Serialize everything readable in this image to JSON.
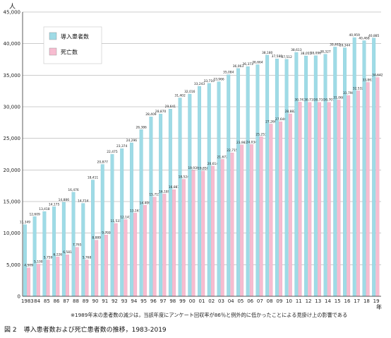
{
  "chart_data": {
    "type": "bar",
    "y_unit_label": "人",
    "x_unit_label": "年",
    "ylim": [
      0,
      45000
    ],
    "y_ticks": [
      "0",
      "5,000",
      "10,000",
      "15,000",
      "20,000",
      "25,000",
      "30,000",
      "35,000",
      "40,000",
      "45,000"
    ],
    "grid": true,
    "legend_position": "top-left",
    "categories": [
      "1983",
      "84",
      "85",
      "86",
      "87",
      "88",
      "89",
      "90",
      "91",
      "92",
      "93",
      "94",
      "95",
      "96",
      "97",
      "98",
      "99",
      "00",
      "01",
      "02",
      "03",
      "04",
      "05",
      "06",
      "07",
      "08",
      "09",
      "10",
      "11",
      "12",
      "13",
      "14",
      "15",
      "16",
      "17",
      "18",
      "19"
    ],
    "series": [
      {
        "name": "導入患者数",
        "color": "#9fdbe6",
        "values": [
          11349,
          12609,
          13418,
          14175,
          14886,
          16476,
          14714,
          18411,
          20877,
          22475,
          23374,
          24296,
          26386,
          28409,
          28870,
          29641,
          31402,
          32016,
          33243,
          33710,
          33966,
          35084,
          36063,
          36373,
          36664,
          38180,
          37588,
          37512,
          38613,
          38055,
          38096,
          38327,
          39462,
          39344,
          40959,
          40468,
          40885
        ],
        "labels": [
          "11,349",
          "12,609",
          "13,418",
          "14,175",
          "14,886",
          "16,476",
          "14,714",
          "18,411",
          "20,877",
          "22,475",
          "23,374",
          "24,296",
          "26,386",
          "28,409",
          "28,870",
          "29,641",
          "31,402",
          "32,016",
          "33,243",
          "33,710",
          "33,966",
          "35,084",
          "36,063",
          "36,373",
          "36,664",
          "38,180",
          "37,588",
          "37,512",
          "38,613",
          "38,055",
          "38,096",
          "38,327",
          "39,462",
          "39,344",
          "40,959",
          "40,468",
          "40,885"
        ]
      },
      {
        "name": "死亡数",
        "color": "#f7bcd0",
        "values": [
          4509,
          5100,
          5759,
          6226,
          6581,
          7765,
          5768,
          8889,
          9703,
          11531,
          12143,
          13167,
          14406,
          15715,
          16189,
          16887,
          18524,
          19930,
          19850,
          20614,
          21672,
          22715,
          23983,
          24034,
          25253,
          27266,
          27646,
          28882,
          30743,
          30710,
          30710,
          30707,
          31068,
          31790,
          32532,
          33863,
          34642
        ],
        "labels": [
          "4,509",
          "5,100",
          "5,759",
          "6,226",
          "6,581",
          "7,765",
          "5,768",
          "8,889",
          "9,703",
          "11,531",
          "12,143",
          "13,167",
          "14,406",
          "15,715",
          "16,189",
          "16,887",
          "18,524",
          "19,930",
          "19,850",
          "20,614",
          "21,672",
          "22,715",
          "23,983",
          "24,034",
          "25,253",
          "27,266",
          "27,646",
          "28,882",
          "30,743",
          "30,710",
          "30,710",
          "30,707",
          "31,068",
          "31,790",
          "32,532",
          "33,863",
          "34,642"
        ]
      }
    ]
  },
  "footnote": "※1989年末の患者数の減少は，当該年度にアンケート回収率が86％と例外的に低かったことによる見掛け上の影響である",
  "caption": {
    "number": "図 2",
    "title": "導入患者数および死亡患者数の推移，1983-2019"
  }
}
